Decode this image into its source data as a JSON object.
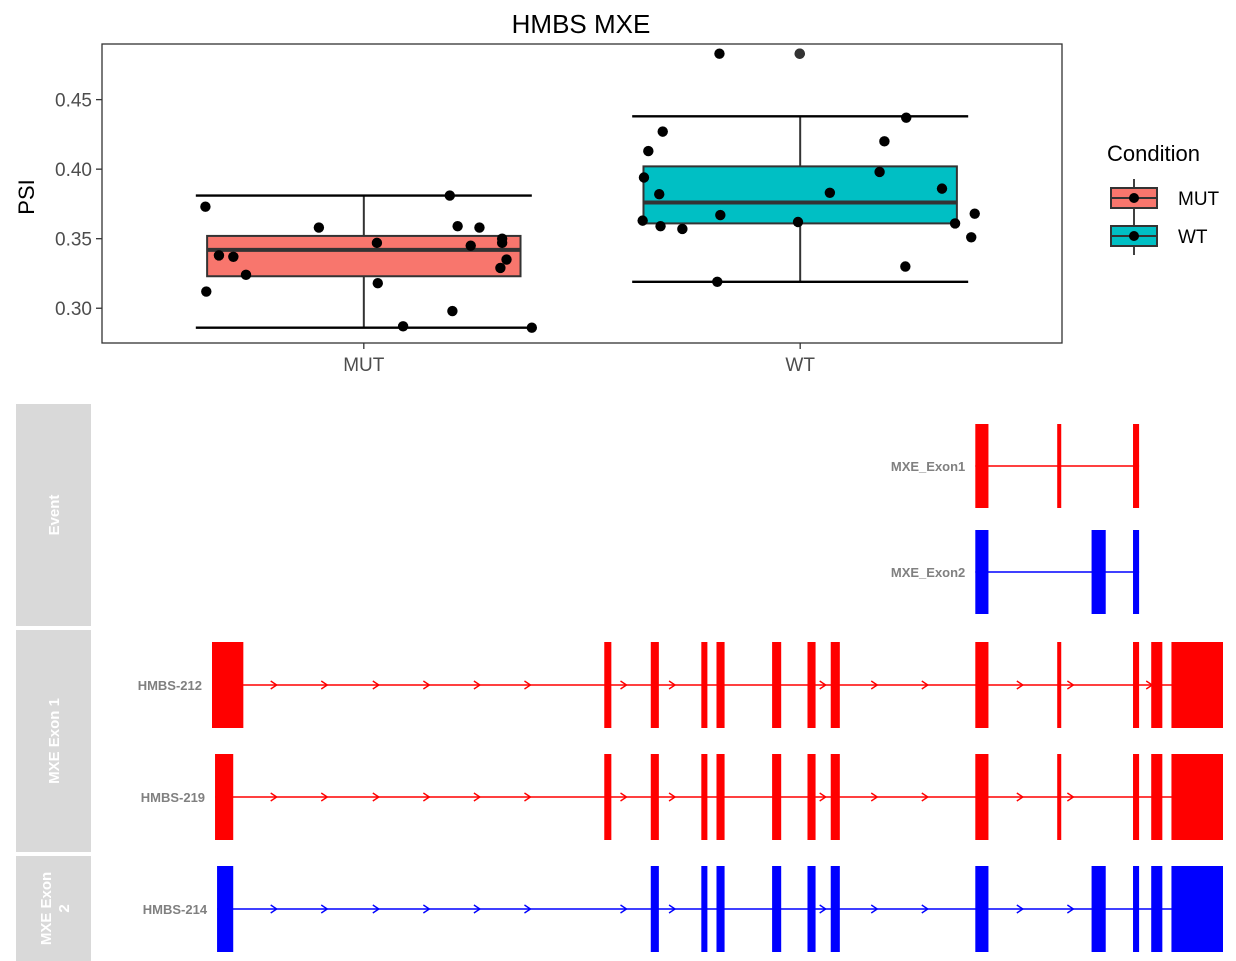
{
  "chart_data": [
    {
      "type": "boxplot",
      "title": "HMBS MXE",
      "xlabel": "",
      "ylabel": "PSI",
      "ylim": [
        0.275,
        0.49
      ],
      "yticks": [
        0.3,
        0.35,
        0.4,
        0.45
      ],
      "ytick_labels": [
        "0.30",
        "0.35",
        "0.40",
        "0.45"
      ],
      "categories": [
        "MUT",
        "WT"
      ],
      "grid": false,
      "legend": {
        "title": "Condition",
        "position": "right",
        "items": [
          {
            "label": "MUT",
            "color": "#F8766D"
          },
          {
            "label": "WT",
            "color": "#00BFC4"
          }
        ]
      },
      "boxes": [
        {
          "category": "MUT",
          "color": "#F8766D",
          "whisker_low": 0.286,
          "q1": 0.323,
          "median": 0.342,
          "q3": 0.352,
          "whisker_high": 0.381
        },
        {
          "category": "WT",
          "color": "#00BFC4",
          "whisker_low": 0.319,
          "q1": 0.361,
          "median": 0.376,
          "q3": 0.402,
          "whisker_high": 0.438
        }
      ],
      "points": [
        {
          "group": "MUT",
          "x": 0.637,
          "y": 0.373
        },
        {
          "group": "MUT",
          "x": 0.639,
          "y": 0.312
        },
        {
          "group": "MUT",
          "x": 0.668,
          "y": 0.338
        },
        {
          "group": "MUT",
          "x": 0.701,
          "y": 0.337
        },
        {
          "group": "MUT",
          "x": 0.73,
          "y": 0.324
        },
        {
          "group": "MUT",
          "x": 0.897,
          "y": 0.358
        },
        {
          "group": "MUT",
          "x": 1.03,
          "y": 0.347
        },
        {
          "group": "MUT",
          "x": 1.032,
          "y": 0.318
        },
        {
          "group": "MUT",
          "x": 1.09,
          "y": 0.287
        },
        {
          "group": "MUT",
          "x": 1.197,
          "y": 0.381
        },
        {
          "group": "MUT",
          "x": 1.203,
          "y": 0.298
        },
        {
          "group": "MUT",
          "x": 1.215,
          "y": 0.359
        },
        {
          "group": "MUT",
          "x": 1.245,
          "y": 0.345
        },
        {
          "group": "MUT",
          "x": 1.265,
          "y": 0.358
        },
        {
          "group": "MUT",
          "x": 1.317,
          "y": 0.35
        },
        {
          "group": "MUT",
          "x": 1.317,
          "y": 0.347
        },
        {
          "group": "MUT",
          "x": 1.313,
          "y": 0.329
        },
        {
          "group": "MUT",
          "x": 1.327,
          "y": 0.335
        },
        {
          "group": "MUT",
          "x": 1.385,
          "y": 0.286
        },
        {
          "group": "WT",
          "x": 1.639,
          "y": 0.363
        },
        {
          "group": "WT",
          "x": 1.642,
          "y": 0.394
        },
        {
          "group": "WT",
          "x": 1.652,
          "y": 0.413
        },
        {
          "group": "WT",
          "x": 1.677,
          "y": 0.382
        },
        {
          "group": "WT",
          "x": 1.68,
          "y": 0.359
        },
        {
          "group": "WT",
          "x": 1.685,
          "y": 0.427
        },
        {
          "group": "WT",
          "x": 1.73,
          "y": 0.357
        },
        {
          "group": "WT",
          "x": 1.817,
          "y": 0.367
        },
        {
          "group": "WT",
          "x": 1.81,
          "y": 0.319
        },
        {
          "group": "WT",
          "x": 1.815,
          "y": 0.483
        },
        {
          "group": "WT",
          "x": 1.995,
          "y": 0.362
        },
        {
          "group": "WT",
          "x": 1.999,
          "y": 0.483
        },
        {
          "group": "WT",
          "x": 2.068,
          "y": 0.383
        },
        {
          "group": "WT",
          "x": 2.182,
          "y": 0.398
        },
        {
          "group": "WT",
          "x": 2.193,
          "y": 0.42
        },
        {
          "group": "WT",
          "x": 2.241,
          "y": 0.33
        },
        {
          "group": "WT",
          "x": 2.243,
          "y": 0.437
        },
        {
          "group": "WT",
          "x": 2.325,
          "y": 0.386
        },
        {
          "group": "WT",
          "x": 2.355,
          "y": 0.361
        },
        {
          "group": "WT",
          "x": 2.392,
          "y": 0.351
        },
        {
          "group": "WT",
          "x": 2.4,
          "y": 0.368
        }
      ]
    },
    {
      "type": "transcript-structure",
      "facets": [
        {
          "label": "Event"
        },
        {
          "label": "MXE Exon 1"
        },
        {
          "label": "MXE Exon\n2"
        }
      ],
      "tracks": [
        {
          "facet": 0,
          "label": "MXE_Exon1",
          "color": "#FF0000",
          "arrows": false,
          "start": 0.755,
          "end": 0.917,
          "exons": [
            [
              0.755,
              0.768
            ],
            [
              0.836,
              0.84
            ],
            [
              0.911,
              0.917
            ]
          ]
        },
        {
          "facet": 0,
          "label": "MXE_Exon2",
          "color": "#0000FF",
          "arrows": false,
          "start": 0.755,
          "end": 0.917,
          "exons": [
            [
              0.755,
              0.768
            ],
            [
              0.87,
              0.884
            ],
            [
              0.911,
              0.917
            ]
          ]
        },
        {
          "facet": 1,
          "label": "HMBS-212",
          "color": "#FF0000",
          "arrows": true,
          "start": 0.0,
          "end": 1.0,
          "exons": [
            [
              0.0,
              0.031
            ],
            [
              0.388,
              0.395
            ],
            [
              0.434,
              0.442
            ],
            [
              0.484,
              0.49
            ],
            [
              0.499,
              0.507
            ],
            [
              0.554,
              0.563
            ],
            [
              0.589,
              0.597
            ],
            [
              0.612,
              0.621
            ],
            [
              0.755,
              0.768
            ],
            [
              0.836,
              0.84
            ],
            [
              0.911,
              0.917
            ],
            [
              0.929,
              0.94
            ],
            [
              0.949,
              1.0
            ]
          ],
          "arrow_positions": [
            0.064,
            0.114,
            0.165,
            0.215,
            0.265,
            0.315,
            0.41,
            0.458,
            0.607,
            0.658,
            0.708,
            0.802,
            0.852,
            0.93
          ]
        },
        {
          "facet": 1,
          "label": "HMBS-219",
          "color": "#FF0000",
          "arrows": true,
          "start": 0.003,
          "end": 1.0,
          "exons": [
            [
              0.003,
              0.021
            ],
            [
              0.388,
              0.395
            ],
            [
              0.434,
              0.442
            ],
            [
              0.484,
              0.49
            ],
            [
              0.499,
              0.507
            ],
            [
              0.554,
              0.563
            ],
            [
              0.589,
              0.597
            ],
            [
              0.612,
              0.621
            ],
            [
              0.755,
              0.768
            ],
            [
              0.836,
              0.84
            ],
            [
              0.911,
              0.917
            ],
            [
              0.929,
              0.94
            ],
            [
              0.949,
              1.0
            ]
          ],
          "arrow_positions": [
            0.064,
            0.114,
            0.165,
            0.215,
            0.265,
            0.315,
            0.41,
            0.458,
            0.607,
            0.658,
            0.708,
            0.802,
            0.852
          ]
        },
        {
          "facet": 2,
          "label": "HMBS-214",
          "color": "#0000FF",
          "arrows": true,
          "start": 0.005,
          "end": 1.0,
          "exons": [
            [
              0.005,
              0.021
            ],
            [
              0.434,
              0.442
            ],
            [
              0.484,
              0.49
            ],
            [
              0.499,
              0.507
            ],
            [
              0.554,
              0.563
            ],
            [
              0.589,
              0.597
            ],
            [
              0.612,
              0.621
            ],
            [
              0.755,
              0.768
            ],
            [
              0.87,
              0.884
            ],
            [
              0.911,
              0.917
            ],
            [
              0.929,
              0.94
            ],
            [
              0.949,
              1.0
            ]
          ],
          "arrow_positions": [
            0.064,
            0.114,
            0.165,
            0.215,
            0.265,
            0.315,
            0.41,
            0.458,
            0.607,
            0.658,
            0.708,
            0.802,
            0.852
          ]
        }
      ]
    }
  ]
}
